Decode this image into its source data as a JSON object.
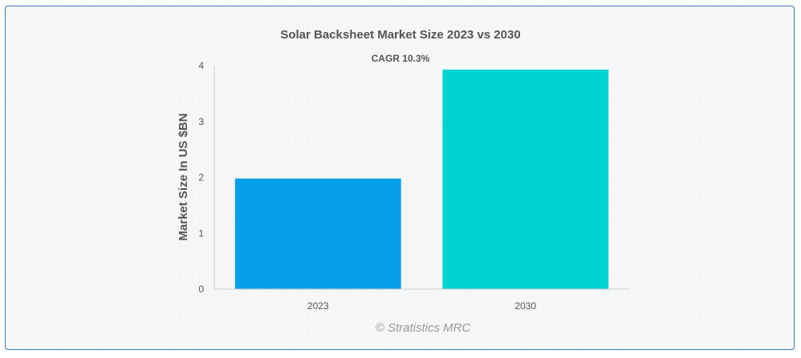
{
  "chart_data": {
    "type": "bar",
    "title": "Solar Backsheet Market Size 2023 vs 2030",
    "annotation": "CAGR 10.3%",
    "xlabel": "",
    "ylabel": "Market Size In US $BN",
    "categories": [
      "2023",
      "2030"
    ],
    "values": [
      1.98,
      3.93
    ],
    "ylim": [
      0,
      4
    ],
    "yticks": [
      "0",
      "1",
      "2",
      "3",
      "4"
    ],
    "colors": [
      "#049fe8",
      "#00d3d3"
    ],
    "grid": false,
    "legend": "none"
  },
  "credit": "© Stratistics MRC"
}
